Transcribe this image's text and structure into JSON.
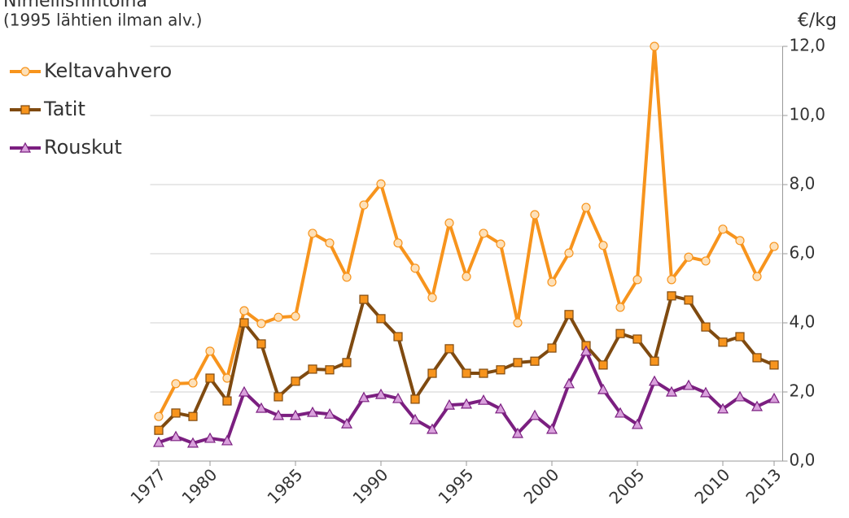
{
  "chart_data": {
    "type": "line",
    "title": "Nimellishintoina",
    "subtitle": "(1995 lähtien ilman alv.)",
    "y_axis_label": "€/kg",
    "x": [
      1977,
      1978,
      1979,
      1980,
      1981,
      1982,
      1983,
      1984,
      1985,
      1986,
      1987,
      1988,
      1989,
      1990,
      1991,
      1992,
      1993,
      1994,
      1995,
      1996,
      1997,
      1998,
      1999,
      2000,
      2001,
      2002,
      2003,
      2004,
      2005,
      2006,
      2007,
      2008,
      2009,
      2010,
      2011,
      2012,
      2013
    ],
    "xlim": [
      1976.5,
      2013.5
    ],
    "xticks": [
      1977,
      1980,
      1985,
      1990,
      1995,
      2000,
      2005,
      2010,
      2013
    ],
    "ylim": [
      0,
      12
    ],
    "yticks": [
      {
        "value": 0,
        "label": "0,0"
      },
      {
        "value": 2,
        "label": "2,0"
      },
      {
        "value": 4,
        "label": "4,0"
      },
      {
        "value": 6,
        "label": "6,0"
      },
      {
        "value": 8,
        "label": "8,0"
      },
      {
        "value": 10,
        "label": "10,0"
      },
      {
        "value": 12,
        "label": "12,0"
      }
    ],
    "grid": true,
    "legend": "top-left",
    "series": [
      {
        "name": "Keltavahvero",
        "color": "#f7941d",
        "marker": "circle",
        "marker_fill": "#fde0b8",
        "values": [
          1.29,
          2.24,
          2.26,
          3.18,
          2.4,
          4.35,
          3.98,
          4.16,
          4.19,
          6.59,
          6.31,
          5.32,
          7.41,
          8.02,
          6.31,
          5.58,
          4.73,
          6.89,
          5.34,
          6.59,
          6.28,
          4.0,
          7.13,
          5.18,
          6.02,
          7.34,
          6.24,
          4.45,
          5.25,
          12.0,
          5.25,
          5.9,
          5.79,
          6.71,
          6.38,
          5.34,
          6.21
        ]
      },
      {
        "name": "Tatit",
        "color": "#7f4a10",
        "marker": "square",
        "marker_fill": "#f7941d",
        "values": [
          0.89,
          1.39,
          1.29,
          2.4,
          1.74,
          4.0,
          3.39,
          1.86,
          2.31,
          2.66,
          2.64,
          2.85,
          4.68,
          4.12,
          3.6,
          1.79,
          2.54,
          3.25,
          2.54,
          2.54,
          2.64,
          2.85,
          2.89,
          3.27,
          4.24,
          3.34,
          2.78,
          3.69,
          3.53,
          2.89,
          4.78,
          4.66,
          3.88,
          3.44,
          3.6,
          2.99,
          2.78
        ]
      },
      {
        "name": "Rouskut",
        "color": "#7b1f80",
        "marker": "triangle",
        "marker_fill": "#d9a0dc",
        "values": [
          0.54,
          0.71,
          0.52,
          0.66,
          0.59,
          2.0,
          1.53,
          1.32,
          1.32,
          1.41,
          1.36,
          1.08,
          1.84,
          1.93,
          1.81,
          1.2,
          0.92,
          1.62,
          1.65,
          1.76,
          1.51,
          0.8,
          1.32,
          0.92,
          2.24,
          3.18,
          2.07,
          1.39,
          1.06,
          2.31,
          2.0,
          2.19,
          1.98,
          1.51,
          1.86,
          1.58,
          1.81
        ]
      }
    ]
  }
}
